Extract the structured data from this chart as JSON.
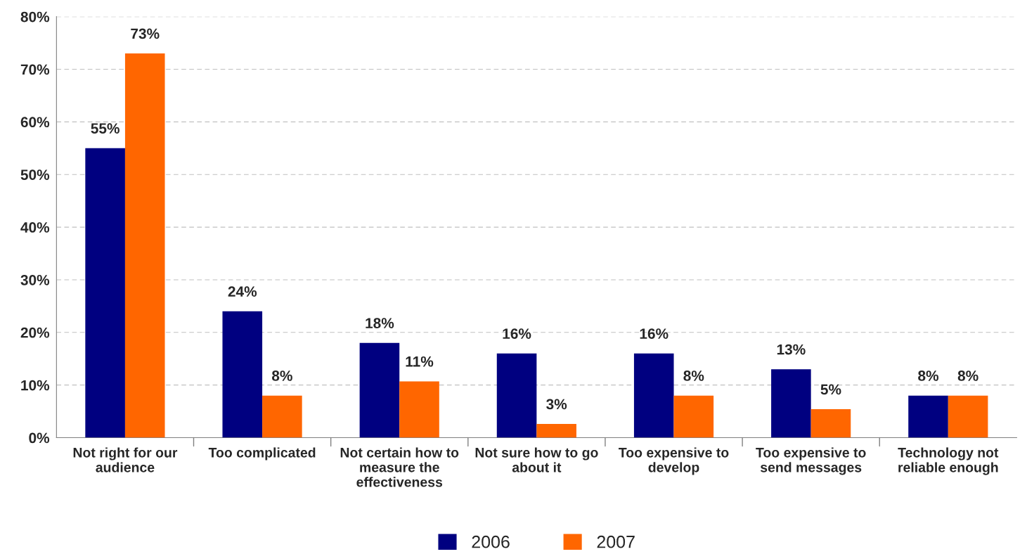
{
  "chart_data": {
    "type": "bar",
    "categories": [
      "Not right for our audience",
      "Too complicated",
      "Not certain how to measure the effectiveness",
      "Not sure how to go about it",
      "Too expensive to develop",
      "Too expensive to send messages",
      "Technology not reliable enough"
    ],
    "series": [
      {
        "name": "2006",
        "color": "#000080",
        "values": [
          55,
          24,
          18,
          16,
          16,
          13,
          8
        ],
        "value_labels": [
          "55%",
          "24%",
          "18%",
          "16%",
          "16%",
          "13%",
          "8%"
        ]
      },
      {
        "name": "2007",
        "color": "#ff6600",
        "values": [
          73,
          8,
          10.7,
          2.6,
          8,
          5.4,
          8
        ],
        "value_labels": [
          "73%",
          "8%",
          "11%",
          "3%",
          "8%",
          "5%",
          "8%"
        ]
      }
    ],
    "ylim": [
      0,
      80
    ],
    "yticks": [
      {
        "value": 0,
        "label": "0%"
      },
      {
        "value": 10,
        "label": "10%"
      },
      {
        "value": 20,
        "label": "20%"
      },
      {
        "value": 30,
        "label": "30%"
      },
      {
        "value": 40,
        "label": "40%"
      },
      {
        "value": 50,
        "label": "50%"
      },
      {
        "value": 60,
        "label": "60%"
      },
      {
        "value": 70,
        "label": "70%"
      },
      {
        "value": 80,
        "label": "80%"
      }
    ],
    "grid": "y",
    "legend": "bottom"
  }
}
